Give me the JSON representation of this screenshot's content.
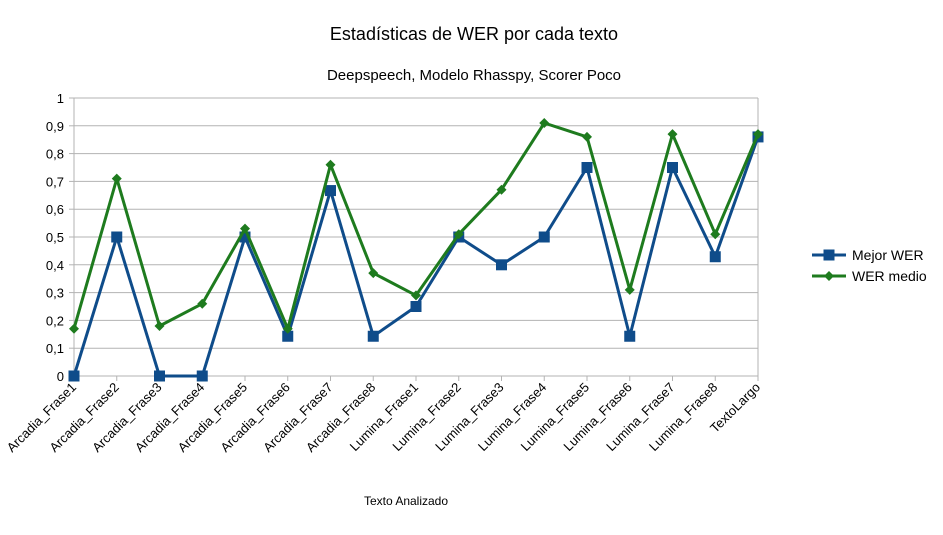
{
  "chart_data": {
    "type": "line",
    "title": "Estadísticas de WER por cada texto",
    "subtitle": "Deepspeech, Modelo Rhasspy, Scorer Poco",
    "xlabel": "Texto Analizado",
    "ylabel": "",
    "ylim": [
      0,
      1
    ],
    "yticks": [
      "0",
      "0,1",
      "0,2",
      "0,3",
      "0,4",
      "0,5",
      "0,6",
      "0,7",
      "0,8",
      "0,9",
      "1"
    ],
    "grid": true,
    "legend_position": "right",
    "categories": [
      "Arcadia_Frase1",
      "Arcadia_Frase2",
      "Arcadia_Frase3",
      "Arcadia_Frase4",
      "Arcadia_Frase5",
      "Arcadia_Frase6",
      "Arcadia_Frase7",
      "Arcadia_Frase8",
      "Lumina_Frase1",
      "Lumina_Frase2",
      "Lumina_Frase3",
      "Lumina_Frase4",
      "Lumina_Frase5",
      "Lumina_Frase6",
      "Lumina_Frase7",
      "Lumina_Frase8",
      "TextoLargo"
    ],
    "series": [
      {
        "name": "Mejor WER",
        "color": "#0f4c8a",
        "marker": "square",
        "values": [
          0,
          0.5,
          0,
          0,
          0.5,
          0.143,
          0.667,
          0.143,
          0.25,
          0.5,
          0.4,
          0.5,
          0.75,
          0.143,
          0.75,
          0.429,
          0.86
        ]
      },
      {
        "name": "WER medio",
        "color": "#1e7b1e",
        "marker": "diamond",
        "values": [
          0.17,
          0.71,
          0.18,
          0.26,
          0.53,
          0.17,
          0.76,
          0.37,
          0.29,
          0.51,
          0.67,
          0.91,
          0.86,
          0.31,
          0.87,
          0.51,
          0.87
        ]
      }
    ]
  }
}
